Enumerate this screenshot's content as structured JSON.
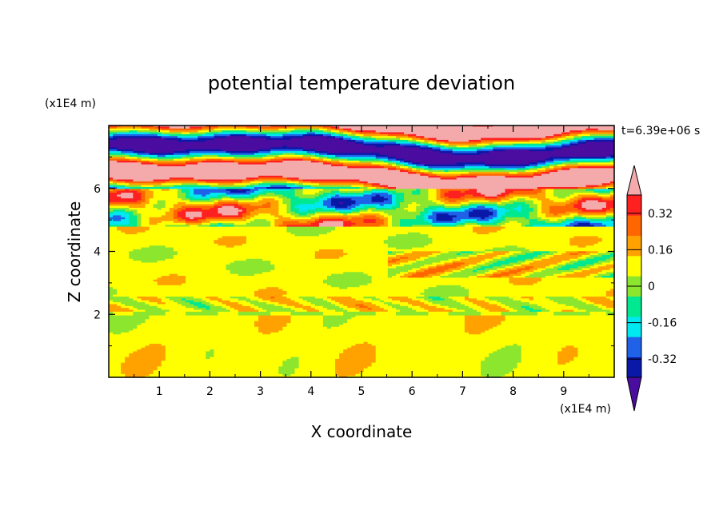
{
  "chart_data": {
    "type": "heatmap",
    "title": "potential temperature deviation",
    "xlabel": "X coordinate",
    "ylabel": "Z coordinate",
    "x_unit": "(x1E4 m)",
    "y_unit": "(x1E4 m)",
    "time_label": "t=6.39e+06 s",
    "xlim": [
      0,
      10
    ],
    "ylim": [
      0,
      8
    ],
    "x_ticks": [
      1,
      2,
      3,
      4,
      5,
      6,
      7,
      8,
      9
    ],
    "y_ticks": [
      2,
      4,
      6
    ],
    "x_tick_labels": [
      "1",
      "2",
      "3",
      "4",
      "5",
      "6",
      "7",
      "8",
      "9"
    ],
    "y_tick_labels": [
      "2",
      "4",
      "6"
    ],
    "grid": false,
    "colorbar": {
      "position": "right",
      "levels": [
        -0.4,
        -0.32,
        -0.24,
        -0.16,
        -0.08,
        0,
        0.08,
        0.16,
        0.24,
        0.32,
        0.4
      ],
      "tick_values": [
        0.32,
        0.16,
        0,
        -0.16,
        -0.32
      ],
      "tick_labels": [
        "0.32",
        "0.16",
        "0",
        "-0.16",
        "-0.32"
      ],
      "colors": [
        "#4b0ca0",
        "#0a18a8",
        "#1f62e8",
        "#00e8f0",
        "#00e890",
        "#8ce62e",
        "#ffff00",
        "#ffa200",
        "#ff6600",
        "#ff2020",
        "#f4aaaa"
      ],
      "extend": "both"
    }
  }
}
